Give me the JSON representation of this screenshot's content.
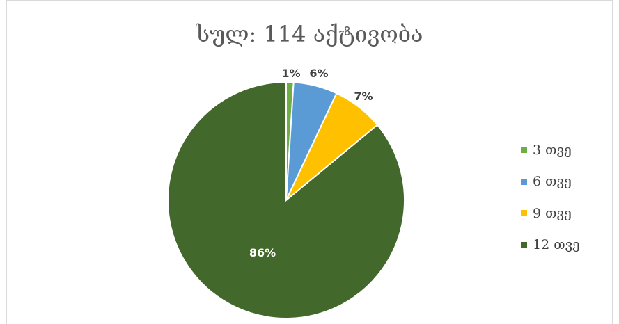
{
  "chart_data": {
    "type": "pie",
    "title": "სულ: 114 აქტივობა",
    "categories": [
      "3 თვე",
      "6 თვე",
      "9 თვე",
      "12 თვე"
    ],
    "values": [
      1,
      6,
      7,
      86
    ],
    "labels": [
      "1%",
      "6%",
      "7%",
      "86%"
    ],
    "colors": [
      "#70ad47",
      "#5b9bd5",
      "#ffc000",
      "#43682b"
    ],
    "legend": "right"
  }
}
